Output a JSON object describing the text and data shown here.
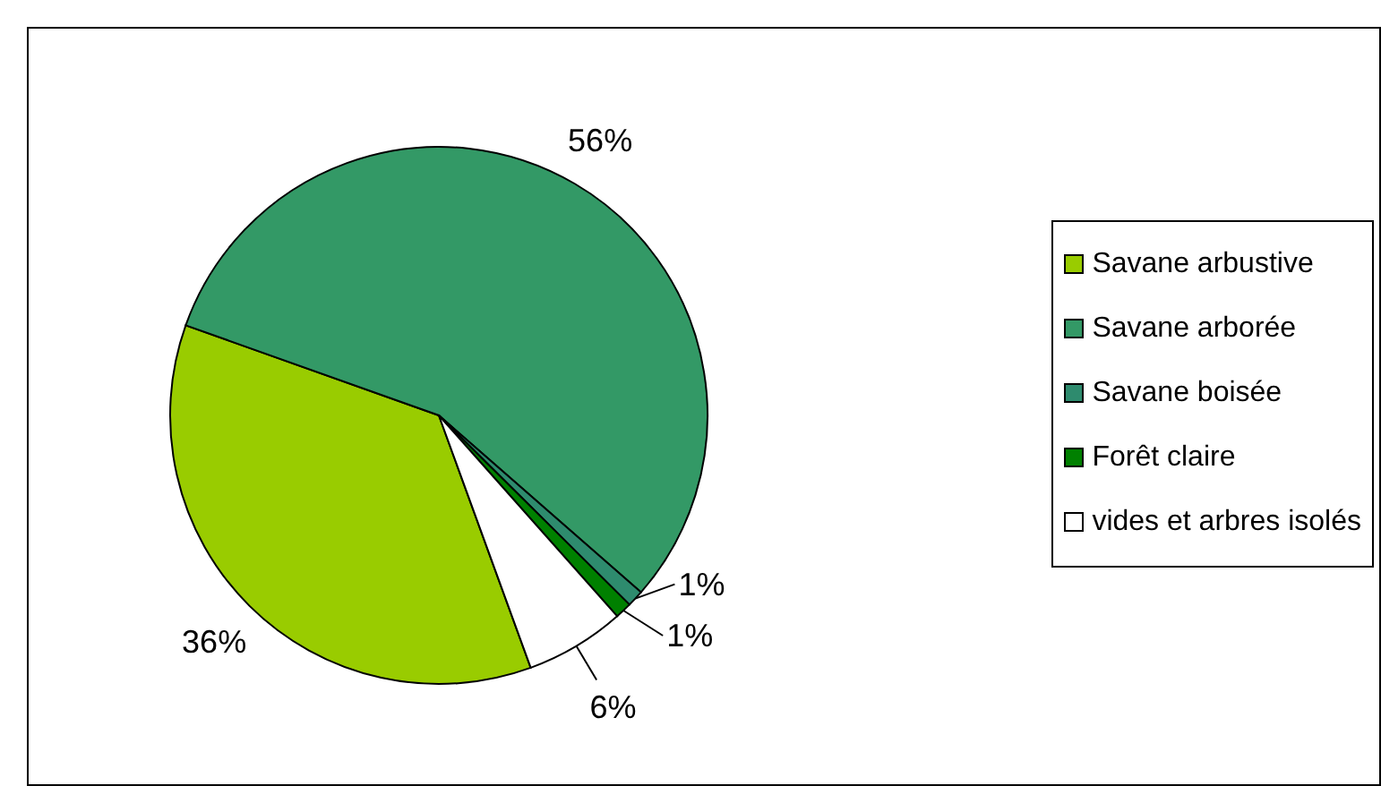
{
  "chart_data": {
    "type": "pie",
    "categories": [
      "Savane arbustive",
      "Savane arborée",
      "Savane boisée",
      "Forêt claire",
      "vides et arbres isolés"
    ],
    "values": [
      36,
      56,
      1,
      1,
      6
    ],
    "colors": [
      "#99cc00",
      "#339966",
      "#2e8b6e",
      "#008000",
      "#ffffff"
    ],
    "value_labels": [
      "36%",
      "56%",
      "1%",
      "1%",
      "6%"
    ],
    "legend": "right"
  }
}
